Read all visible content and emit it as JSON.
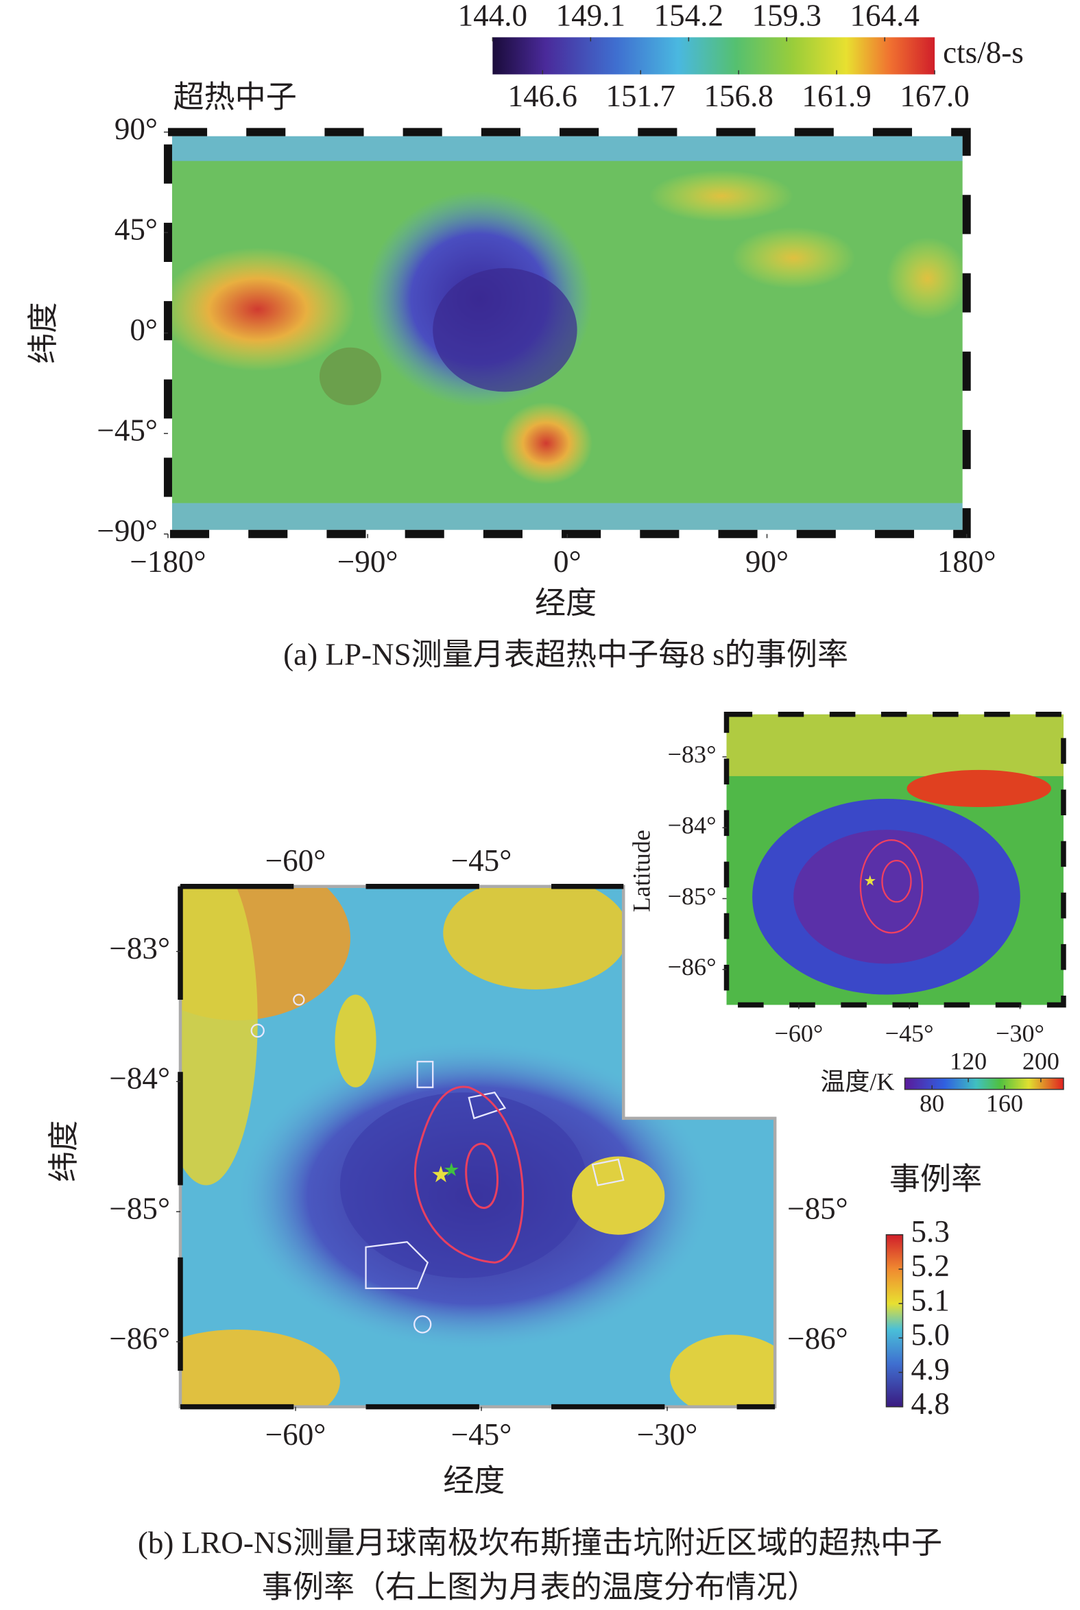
{
  "chart_data": [
    {
      "type": "map",
      "title": "超热中子",
      "xlabel": "经度",
      "ylabel": "纬度",
      "caption": "(a) LP-NS测量月表超热中子每8 s的事例率",
      "xlim": [
        -180,
        180
      ],
      "ylim": [
        -90,
        90
      ],
      "xticks": [
        {
          "value": -180,
          "label": "−180°"
        },
        {
          "value": -90,
          "label": "−90°"
        },
        {
          "value": 0,
          "label": "0°"
        },
        {
          "value": 90,
          "label": "90°"
        },
        {
          "value": 180,
          "label": "180°"
        }
      ],
      "yticks": [
        {
          "value": 90,
          "label": "90°"
        },
        {
          "value": 45,
          "label": "45°"
        },
        {
          "value": 0,
          "label": "0°"
        },
        {
          "value": -45,
          "label": "−45°"
        },
        {
          "value": -90,
          "label": "−90°"
        }
      ],
      "colorbar": {
        "label": "cts/8-s",
        "orientation": "horizontal",
        "lim": [
          144.0,
          167.0
        ],
        "ticks": [
          {
            "value": 144,
            "label": "144.0"
          },
          146.6,
          149.1,
          151.7,
          154.2,
          156.8,
          159.3,
          161.9,
          164.4,
          {
            "value": 167,
            "label": "167.0"
          }
        ]
      }
    },
    {
      "type": "map",
      "xlabel": "经度",
      "ylabel": "纬度",
      "caption": [
        "(b) LRO-NS测量月球南极坎布斯撞击坑附近区域的超热中子",
        "事例率（右上图为月表的温度分布情况）"
      ],
      "xlim": [
        -69.3,
        -21.3
      ],
      "ylim": [
        -86.5,
        -82.5
      ],
      "xticks": [
        {
          "value": -60,
          "label": "−60°"
        },
        {
          "value": -45,
          "label": "−45°"
        },
        {
          "value": -30,
          "label": "−30°"
        }
      ],
      "yticks": [
        {
          "value": -83,
          "label": "−83°"
        },
        {
          "value": -84,
          "label": "−84°"
        },
        {
          "value": -85,
          "label": "−85°"
        },
        {
          "value": -86,
          "label": "−86°"
        }
      ],
      "colorbar": {
        "title": "事例率",
        "orientation": "vertical",
        "lim": [
          4.8,
          5.3
        ],
        "ticks": [
          5.3,
          5.2,
          5.1,
          {
            "value": 5.0,
            "label": "5.0"
          },
          4.9,
          4.8
        ]
      }
    },
    {
      "type": "map",
      "ylabel": "Latitude",
      "xlim": [
        -69.8,
        -24.1
      ],
      "ylim": [
        -86.5,
        -82.4
      ],
      "xticks": [
        {
          "value": -60,
          "label": "−60°"
        },
        {
          "value": -45,
          "label": "−45°"
        },
        {
          "value": -30,
          "label": "−30°"
        }
      ],
      "yticks": [
        {
          "value": -83,
          "label": "−83°"
        },
        {
          "value": -84,
          "label": "−84°"
        },
        {
          "value": -85,
          "label": "−85°"
        },
        {
          "value": -86,
          "label": "−86°"
        }
      ],
      "colorbar": {
        "label": "温度/K",
        "orientation": "horizontal",
        "lim": [
          50,
          225
        ],
        "ticks": [
          80,
          120,
          160,
          200
        ]
      }
    }
  ]
}
